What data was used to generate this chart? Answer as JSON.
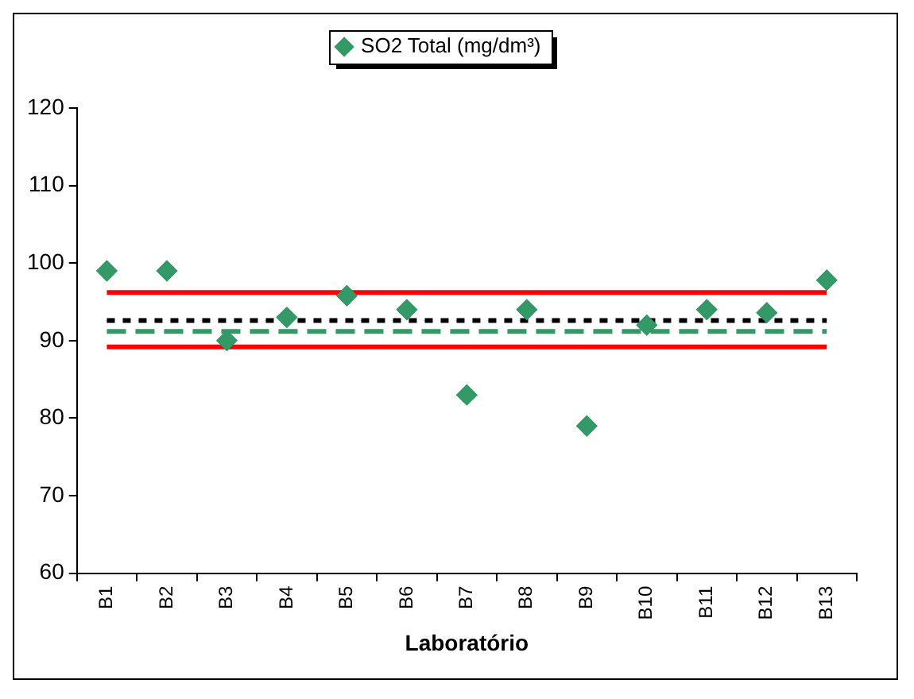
{
  "chart_data": {
    "type": "scatter",
    "xlabel": "Laboratório",
    "categories": [
      "B1",
      "B2",
      "B3",
      "B4",
      "B5",
      "B6",
      "B7",
      "B8",
      "B9",
      "B10",
      "B11",
      "B12",
      "B13"
    ],
    "series": [
      {
        "name": "SO2 Total (mg/dm³)",
        "color": "#339966",
        "values": [
          99,
          99,
          90,
          93,
          95.8,
          94,
          83,
          94,
          79,
          92,
          94,
          93.6,
          97.8
        ]
      }
    ],
    "ylim": [
      60,
      120
    ],
    "yticks": [
      60,
      70,
      80,
      90,
      100,
      110,
      120
    ],
    "ref_lines": [
      {
        "axis": "y",
        "value": 96.2,
        "color": "#ff0000",
        "line_style": "solid"
      },
      {
        "axis": "y",
        "value": 89.2,
        "color": "#ff0000",
        "line_style": "solid"
      },
      {
        "axis": "y",
        "value": 92.6,
        "color": "#000000",
        "line_style": "dotted"
      },
      {
        "axis": "y",
        "value": 91.2,
        "color": "#339966",
        "line_style": "dashed"
      }
    ],
    "marker": "diamond",
    "legend": "top",
    "grid": false
  }
}
